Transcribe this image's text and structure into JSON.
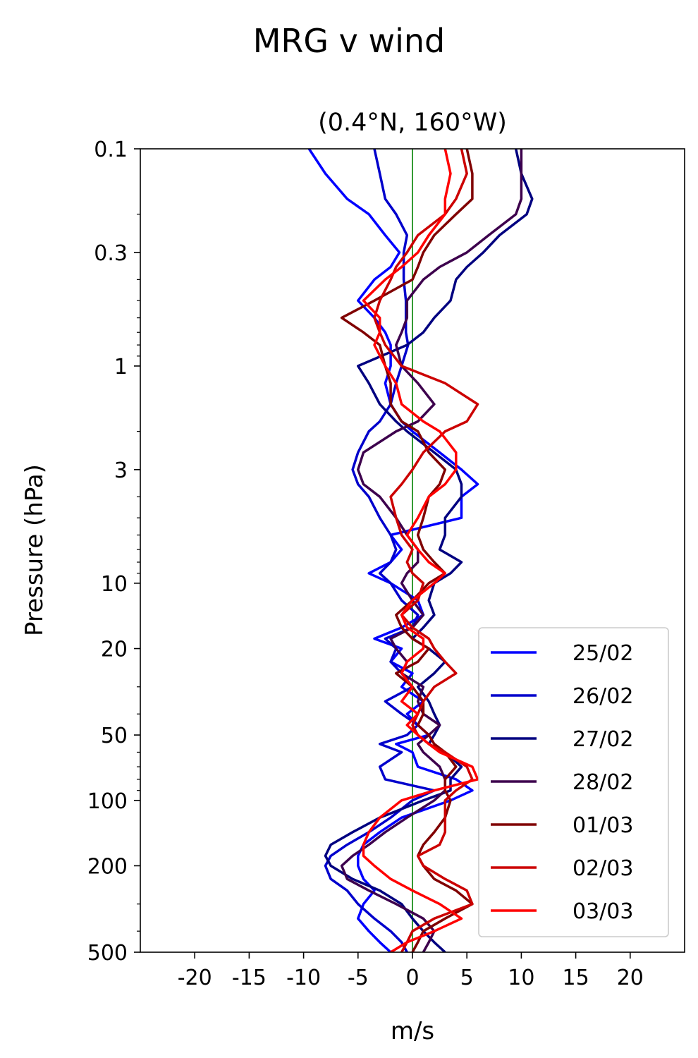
{
  "chart_data": {
    "type": "line",
    "orientation": "vertical-profile",
    "title": "MRG v wind",
    "subtitle": "(0.4°N, 160°W)",
    "xlabel": "m/s",
    "ylabel": "Pressure (hPa)",
    "xlim": [
      -25,
      25
    ],
    "ylim": [
      500,
      0.1
    ],
    "yscale": "log",
    "x_ticks": [
      -20,
      -15,
      -10,
      -5,
      0,
      5,
      10,
      15,
      20
    ],
    "x_tick_labels": [
      "-20",
      "-15",
      "-10",
      "-5",
      "0",
      "5",
      "10",
      "15",
      "20"
    ],
    "y_ticks": [
      0.1,
      0.3,
      1,
      3,
      10,
      20,
      50,
      100,
      200,
      500
    ],
    "y_tick_labels": [
      "0.1",
      "0.3",
      "1",
      "3",
      "10",
      "20",
      "50",
      "100",
      "200",
      "500"
    ],
    "y_minor_ticks": [
      0.2,
      0.4,
      0.5,
      0.6,
      0.7,
      0.8,
      0.9,
      2,
      4,
      5,
      6,
      7,
      8,
      9,
      30,
      40,
      60,
      70,
      80,
      90,
      300,
      400
    ],
    "zero_line": {
      "x": 0,
      "color": "#008000"
    },
    "grid": false,
    "legend_position": "lower-right",
    "pressure_levels": [
      0.1,
      0.13,
      0.17,
      0.2,
      0.25,
      0.3,
      0.35,
      0.4,
      0.5,
      0.6,
      0.7,
      0.8,
      1.0,
      1.2,
      1.5,
      1.8,
      2.0,
      2.5,
      3.0,
      3.5,
      4.0,
      5.0,
      6.0,
      7.0,
      8.0,
      9.0,
      10,
      12,
      14,
      16,
      18,
      20,
      23,
      26,
      30,
      35,
      40,
      45,
      50,
      55,
      60,
      70,
      80,
      90,
      100,
      120,
      140,
      160,
      180,
      200,
      230,
      260,
      300,
      350,
      400,
      450,
      500
    ],
    "series": [
      {
        "name": "25/02",
        "color": "#0000ff",
        "values": [
          -9.5,
          -8,
          -6,
          -4,
          -2.5,
          -1.2,
          -2,
          -3.5,
          -5,
          -3.5,
          -2.5,
          -2,
          -2,
          -2.5,
          -2,
          -1,
          0,
          2.5,
          4.5,
          6,
          4.5,
          4.5,
          -2,
          -1,
          -2,
          -4,
          -2,
          0.5,
          1,
          -1,
          -3.5,
          -1,
          -2,
          0,
          -1,
          1,
          -0.5,
          0.5,
          1.5,
          -1.5,
          0,
          0.5,
          4,
          5.5,
          3.5,
          -1,
          -3,
          -4.5,
          -5,
          -5,
          -4.5,
          -3.5,
          -4.5,
          -5,
          -4,
          -3,
          -2
        ]
      },
      {
        "name": "26/02",
        "color": "#0000cc",
        "values": [
          -3.5,
          -3,
          -2.5,
          -1.5,
          -0.5,
          -0.8,
          -0.8,
          -0.8,
          -0.6,
          -0.6,
          -0.6,
          -0.4,
          -1,
          -1.5,
          -2,
          -3,
          -4,
          -5,
          -5.5,
          -5,
          -4,
          -3,
          -2,
          -1.5,
          -2,
          -3,
          -2,
          -1,
          0.5,
          0,
          -2.5,
          -1.5,
          -2,
          -1,
          0,
          -2.5,
          -1,
          0.5,
          -0.5,
          -3,
          -1,
          -3,
          -2.5,
          2,
          0,
          -2,
          -4,
          -6,
          -7.5,
          -8,
          -7.5,
          -6,
          -5,
          -3.5,
          -2,
          -1,
          -0.5
        ]
      },
      {
        "name": "27/02",
        "color": "#000080",
        "values": [
          9.5,
          10,
          11,
          10.5,
          8,
          6.5,
          5,
          4,
          3.5,
          2,
          1,
          -0.5,
          -5,
          -4,
          -3,
          -1.5,
          -0.5,
          2,
          4,
          4.5,
          4.5,
          3,
          3,
          2.5,
          4.5,
          3.5,
          2,
          1.5,
          2,
          1,
          0,
          1.5,
          3,
          2,
          0.5,
          1.5,
          2,
          2.5,
          2,
          1.5,
          3,
          4.5,
          3.5,
          3.5,
          1,
          -3,
          -5.5,
          -7.5,
          -8,
          -7.5,
          -5.5,
          -3,
          -1,
          0,
          1,
          2,
          3
        ]
      },
      {
        "name": "28/02",
        "color": "#3d004d",
        "values": [
          10,
          10,
          10,
          9.5,
          7,
          5,
          2.5,
          1,
          -0.5,
          -0.5,
          -1,
          -1.5,
          -1,
          0.5,
          2,
          0.5,
          -1.5,
          -4.5,
          -5,
          -4.5,
          -3,
          -1.5,
          -0.5,
          0.5,
          0.5,
          -0.5,
          -1,
          0,
          1,
          0,
          -2,
          -1.5,
          -0.5,
          -1,
          1,
          0.5,
          1,
          2.5,
          1.5,
          0.5,
          1,
          2.5,
          3,
          3,
          2,
          -0.5,
          -2.5,
          -4,
          -5.5,
          -6.5,
          -6,
          -4,
          -1.5,
          1,
          2,
          1.5,
          1
        ]
      },
      {
        "name": "01/03",
        "color": "#800000",
        "values": [
          5,
          5.5,
          5.5,
          4,
          2,
          1,
          0.5,
          0,
          -3.5,
          -6.5,
          -4.5,
          -3,
          -2.5,
          -2,
          -2,
          -1,
          0.5,
          1.5,
          3,
          2.5,
          1.5,
          1,
          0.5,
          1,
          2,
          3,
          1.5,
          0,
          -1.5,
          -1,
          0,
          1.5,
          0.5,
          -1.5,
          0,
          1,
          1,
          0.5,
          1.5,
          2,
          3,
          4,
          3,
          3,
          3.5,
          3,
          2,
          1,
          0.5,
          1,
          2,
          4,
          5.5,
          3,
          1,
          0.5,
          0
        ]
      },
      {
        "name": "02/03",
        "color": "#cc0000",
        "values": [
          4.5,
          5,
          4,
          3,
          0.5,
          -0.5,
          -1.5,
          -2,
          -3,
          -3.5,
          -3,
          -2.5,
          -1,
          3,
          6,
          5,
          3,
          1,
          0,
          -1,
          -2,
          -1.5,
          -1,
          0,
          -0.5,
          0,
          1,
          0.5,
          -1,
          0,
          1.5,
          2,
          3,
          4,
          2,
          1,
          0.5,
          0,
          0.5,
          1.5,
          3,
          5,
          5.5,
          4,
          3,
          3,
          3,
          2.5,
          0.5,
          1,
          3,
          5,
          5.5,
          2,
          0,
          -0.5,
          -1
        ]
      },
      {
        "name": "03/03",
        "color": "#ff0000",
        "values": [
          3,
          3.5,
          3,
          3,
          1.5,
          0.5,
          -1,
          -2.5,
          -4.5,
          -3,
          -3,
          -3.5,
          -2.5,
          -1.5,
          -1,
          1,
          2.5,
          4,
          4,
          3,
          1.5,
          0.5,
          -0.5,
          0.5,
          1.5,
          3,
          2,
          0,
          -1,
          -0.5,
          1,
          1,
          -0.5,
          -1,
          0,
          -1,
          0.5,
          -0.5,
          0.5,
          1.5,
          2.5,
          5.5,
          6,
          2,
          -1,
          -3,
          -4,
          -4.5,
          -4.5,
          -3.5,
          -2,
          0,
          2.5,
          4.5,
          2,
          -0.5,
          -2
        ]
      }
    ]
  }
}
